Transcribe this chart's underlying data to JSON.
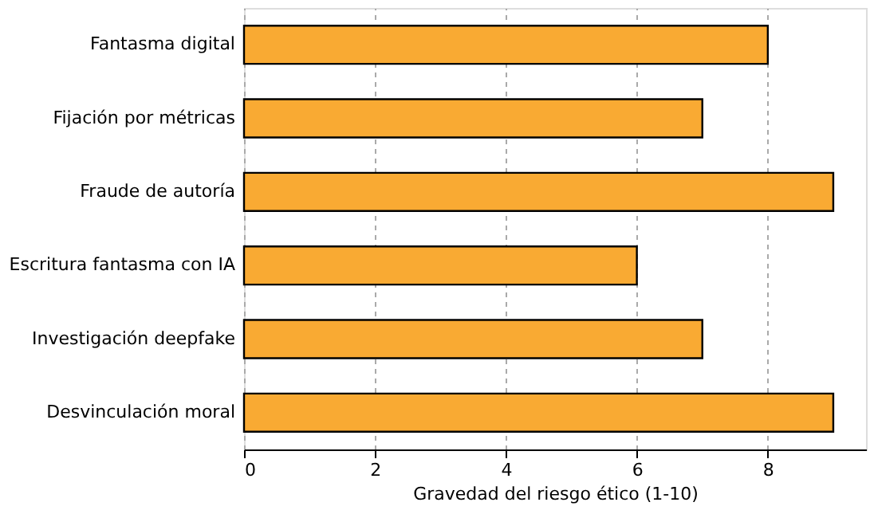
{
  "chart_data": {
    "type": "bar",
    "orientation": "horizontal",
    "categories": [
      "Fantasma digital",
      "Fijación por métricas",
      "Fraude de autoría",
      "Escritura fantasma con IA",
      "Investigación deepfake",
      "Desvinculación moral"
    ],
    "values": [
      8,
      7,
      9,
      6,
      7,
      9
    ],
    "color": "#f9aa33",
    "xlabel": "Gravedad del riesgo ético (1-10)",
    "xlim": [
      0,
      9.5
    ],
    "xticks": [
      0,
      2,
      4,
      6,
      8
    ],
    "grid": "x"
  }
}
